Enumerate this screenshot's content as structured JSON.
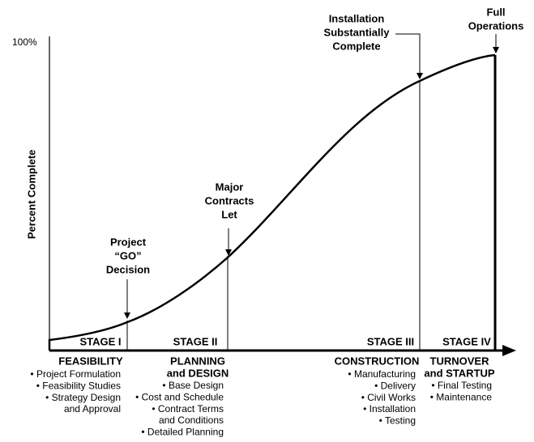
{
  "y_axis": {
    "label": "Percent Complete",
    "tick": "100%"
  },
  "stages": [
    "STAGE I",
    "STAGE II",
    "STAGE III",
    "STAGE IV"
  ],
  "annotations": [
    {
      "lines": [
        "Project",
        "“GO”",
        "Decision"
      ]
    },
    {
      "lines": [
        "Major",
        "Contracts",
        "Let"
      ]
    },
    {
      "lines": [
        "Installation",
        "Substantially",
        "Complete"
      ]
    },
    {
      "lines": [
        "Full",
        "Operations"
      ]
    }
  ],
  "phases": [
    {
      "heading": [
        "FEASIBILITY"
      ],
      "items": [
        "• Project Formulation",
        "• Feasibility Studies",
        "• Strategy Design",
        "and Approval"
      ]
    },
    {
      "heading": [
        "PLANNING",
        "and DESIGN"
      ],
      "items": [
        "• Base Design",
        "• Cost and Schedule",
        "• Contract Terms",
        "and Conditions",
        "• Detailed Planning"
      ]
    },
    {
      "heading": [
        "CONSTRUCTION"
      ],
      "items": [
        "• Manufacturing",
        "• Delivery",
        "• Civil Works",
        "• Installation",
        "• Testing"
      ]
    },
    {
      "heading": [
        "TURNOVER",
        "and STARTUP"
      ],
      "items": [
        "• Final Testing",
        "• Maintenance"
      ]
    }
  ]
}
